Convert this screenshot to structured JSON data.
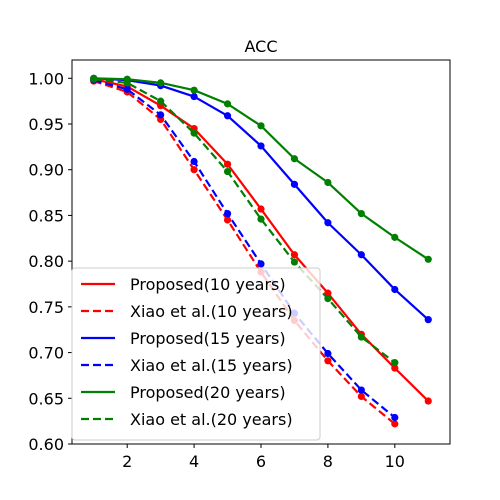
{
  "chart_data": {
    "type": "line",
    "title": "ACC",
    "xlabel": "",
    "ylabel": "",
    "xlim": [
      0.35,
      11.65
    ],
    "ylim": [
      0.6,
      1.02
    ],
    "xticks": [
      2,
      4,
      6,
      8,
      10
    ],
    "xtick_labels": [
      "2",
      "4",
      "6",
      "8",
      "10"
    ],
    "yticks": [
      0.6,
      0.65,
      0.7,
      0.75,
      0.8,
      0.85,
      0.9,
      0.95,
      1.0
    ],
    "ytick_labels": [
      "0.60",
      "0.65",
      "0.70",
      "0.75",
      "0.80",
      "0.85",
      "0.90",
      "0.95",
      "1.00"
    ],
    "grid": false,
    "legend_position": "lower-left",
    "series": [
      {
        "name": "Proposed(10 years)",
        "color": "#ff0000",
        "linestyle": "solid",
        "x": [
          1,
          2,
          3,
          4,
          5,
          6,
          7,
          8,
          9,
          10,
          11
        ],
        "y": [
          0.999,
          0.991,
          0.97,
          0.945,
          0.906,
          0.857,
          0.807,
          0.765,
          0.72,
          0.683,
          0.647
        ]
      },
      {
        "name": "Xiao et al.(10 years)",
        "color": "#ff0000",
        "linestyle": "dashed",
        "x": [
          1,
          2,
          3,
          4,
          5,
          6,
          7,
          8,
          9,
          10
        ],
        "y": [
          0.997,
          0.985,
          0.955,
          0.9,
          0.845,
          0.788,
          0.735,
          0.691,
          0.652,
          0.622
        ]
      },
      {
        "name": "Proposed(15 years)",
        "color": "#0000ff",
        "linestyle": "solid",
        "x": [
          1,
          2,
          3,
          4,
          5,
          6,
          7,
          8,
          9,
          10,
          11
        ],
        "y": [
          1.0,
          0.998,
          0.992,
          0.98,
          0.959,
          0.926,
          0.884,
          0.842,
          0.807,
          0.769,
          0.736
        ]
      },
      {
        "name": "Xiao et al.(15 years)",
        "color": "#0000ff",
        "linestyle": "dashed",
        "x": [
          1,
          2,
          3,
          4,
          5,
          6,
          7,
          8,
          9,
          10
        ],
        "y": [
          0.998,
          0.988,
          0.96,
          0.909,
          0.852,
          0.797,
          0.743,
          0.699,
          0.659,
          0.629
        ]
      },
      {
        "name": "Proposed(20 years)",
        "color": "#008000",
        "linestyle": "solid",
        "x": [
          1,
          2,
          3,
          4,
          5,
          6,
          7,
          8,
          9,
          10,
          11
        ],
        "y": [
          1.0,
          0.999,
          0.995,
          0.987,
          0.972,
          0.948,
          0.912,
          0.886,
          0.852,
          0.826,
          0.802
        ]
      },
      {
        "name": "Xiao et al.(20 years)",
        "color": "#008000",
        "linestyle": "dashed",
        "x": [
          1,
          2,
          3,
          4,
          5,
          6,
          7,
          8,
          9,
          10
        ],
        "y": [
          0.999,
          0.995,
          0.975,
          0.94,
          0.898,
          0.846,
          0.799,
          0.759,
          0.717,
          0.689
        ]
      }
    ]
  }
}
